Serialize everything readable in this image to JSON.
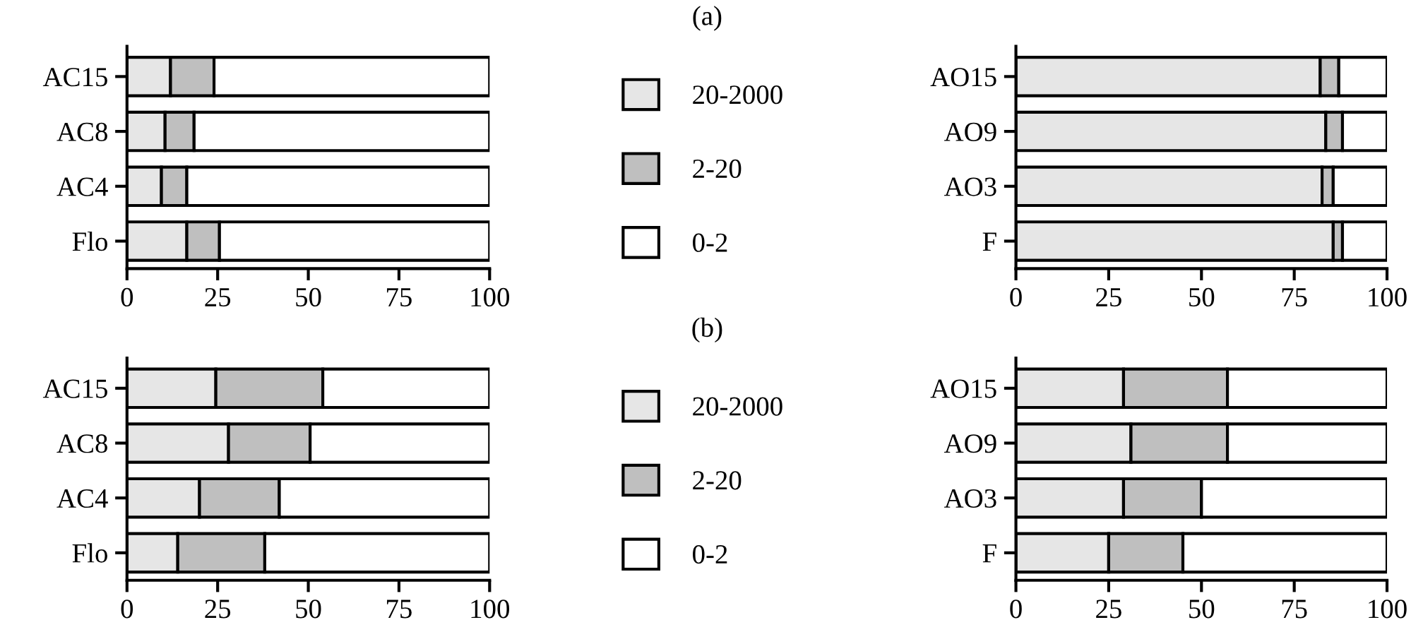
{
  "chart_data": [
    {
      "type": "bar",
      "orientation": "horizontal",
      "stacked": true,
      "categories": [
        "AC15",
        "AC8",
        "AC4",
        "Flo"
      ],
      "xlim": [
        0,
        100
      ],
      "xticks": [
        0,
        25,
        50,
        75,
        100
      ],
      "legend": "right",
      "annotations": [
        "(a)"
      ],
      "series": [
        {
          "name": "20-2000",
          "color": "#e6e6e6",
          "values": [
            12,
            10.5,
            9.5,
            16.5
          ]
        },
        {
          "name": "2-20",
          "color": "#bfbfbf",
          "values": [
            12,
            8,
            7,
            9
          ]
        },
        {
          "name": "0-2",
          "color": "#ffffff",
          "values": [
            76,
            81.5,
            83.5,
            74.5
          ]
        }
      ]
    },
    {
      "type": "bar",
      "orientation": "horizontal",
      "stacked": true,
      "categories": [
        "AO15",
        "AO9",
        "AO3",
        "F"
      ],
      "xlim": [
        0,
        100
      ],
      "xticks": [
        0,
        25,
        50,
        75,
        100
      ],
      "series": [
        {
          "color": "#e6e6e6",
          "values": [
            82,
            83.5,
            82.5,
            85.5
          ]
        },
        {
          "color": "#bfbfbf",
          "values": [
            5,
            4.5,
            3,
            2.5
          ]
        },
        {
          "color": "#ffffff",
          "values": [
            13,
            12,
            14.5,
            12
          ]
        }
      ]
    },
    {
      "type": "bar",
      "orientation": "horizontal",
      "stacked": true,
      "categories": [
        "AC15",
        "AC8",
        "AC4",
        "Flo"
      ],
      "xlim": [
        0,
        100
      ],
      "xticks": [
        0,
        25,
        50,
        75,
        100
      ],
      "legend": "right",
      "annotations": [
        "(b)"
      ],
      "series": [
        {
          "name": "20-2000",
          "color": "#e6e6e6",
          "values": [
            24.5,
            28,
            20,
            14
          ]
        },
        {
          "name": "2-20",
          "color": "#bfbfbf",
          "values": [
            29.5,
            22.5,
            22,
            24
          ]
        },
        {
          "name": "0-2",
          "color": "#ffffff",
          "values": [
            46,
            49.5,
            58,
            62
          ]
        }
      ]
    },
    {
      "type": "bar",
      "orientation": "horizontal",
      "stacked": true,
      "categories": [
        "AO15",
        "AO9",
        "AO3",
        "F"
      ],
      "xlim": [
        0,
        100
      ],
      "xticks": [
        0,
        25,
        50,
        75,
        100
      ],
      "series": [
        {
          "color": "#e6e6e6",
          "values": [
            29,
            31,
            29,
            25
          ]
        },
        {
          "color": "#bfbfbf",
          "values": [
            28,
            26,
            21,
            20
          ]
        },
        {
          "color": "#ffffff",
          "values": [
            43,
            43,
            50,
            55
          ]
        }
      ]
    }
  ]
}
